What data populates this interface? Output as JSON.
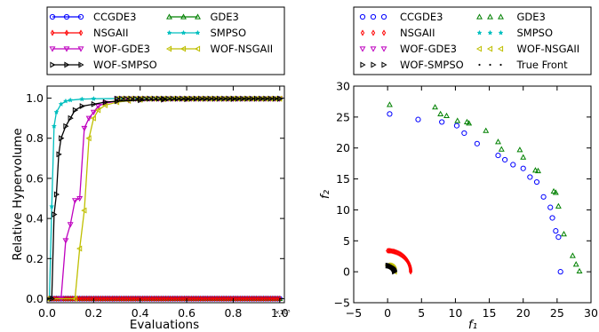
{
  "chart_data": [
    {
      "type": "line",
      "xlabel": "Evaluations",
      "ylabel": "Relative Hypervolume",
      "x_multiplier_label": "×10⁵",
      "xlim": [
        0,
        1.02
      ],
      "ylim": [
        -0.02,
        1.06
      ],
      "xticks": [
        "0.0",
        "0.2",
        "0.4",
        "0.6",
        "0.8",
        "1.0"
      ],
      "yticks": [
        "0.0",
        "0.2",
        "0.4",
        "0.6",
        "0.8",
        "1.0"
      ],
      "grid": false,
      "legend": {
        "placement": "above",
        "columns": 2,
        "entries": [
          "CCGDE3",
          "GDE3",
          "NSGAII",
          "SMPSO",
          "WOF-GDE3",
          "WOF-NSGAII",
          "WOF-SMPSO"
        ]
      },
      "series": [
        {
          "name": "CCGDE3",
          "color": "#0000ff",
          "marker": "circle",
          "x": [
            0.01,
            0.2,
            0.4,
            0.6,
            0.8,
            1.0
          ],
          "y": [
            0.0,
            0.0,
            0.0,
            0.0,
            0.0,
            0.0
          ]
        },
        {
          "name": "GDE3",
          "color": "#008000",
          "marker": "triangle-up",
          "x": [
            0.01,
            0.2,
            0.4,
            0.6,
            0.8,
            1.0
          ],
          "y": [
            0.0,
            0.0,
            0.0,
            0.0,
            0.0,
            0.0
          ]
        },
        {
          "name": "NSGAII",
          "color": "#ff0000",
          "marker": "thin-diamond",
          "x": [
            0.01,
            0.2,
            0.4,
            0.6,
            0.8,
            1.0
          ],
          "y": [
            0.0,
            0.0,
            0.0,
            0.0,
            0.0,
            0.0
          ]
        },
        {
          "name": "SMPSO",
          "color": "#00bfbf",
          "marker": "star",
          "x": [
            0.01,
            0.02,
            0.03,
            0.04,
            0.06,
            0.08,
            0.1,
            0.15,
            0.2,
            0.3,
            0.4,
            0.5,
            0.6,
            0.7,
            0.8,
            0.9,
            1.0
          ],
          "y": [
            0.0,
            0.46,
            0.86,
            0.93,
            0.97,
            0.985,
            0.99,
            0.995,
            0.997,
            0.998,
            0.998,
            0.998,
            0.998,
            0.998,
            0.998,
            0.998,
            0.998
          ]
        },
        {
          "name": "WOF-GDE3",
          "color": "#bf00bf",
          "marker": "triangle-down",
          "x": [
            0.0,
            0.06,
            0.08,
            0.1,
            0.12,
            0.14,
            0.16,
            0.18,
            0.2,
            0.22,
            0.25,
            0.3,
            0.35,
            0.4,
            0.5,
            0.6,
            0.8,
            1.0
          ],
          "y": [
            0.0,
            0.0,
            0.29,
            0.37,
            0.49,
            0.5,
            0.85,
            0.9,
            0.93,
            0.96,
            0.975,
            0.985,
            0.99,
            0.993,
            0.995,
            0.996,
            0.997,
            0.997
          ]
        },
        {
          "name": "WOF-NSGAII",
          "color": "#bfbf00",
          "marker": "triangle-left",
          "x": [
            0.0,
            0.12,
            0.14,
            0.16,
            0.18,
            0.2,
            0.22,
            0.25,
            0.3,
            0.35,
            0.4,
            0.5,
            0.6,
            0.8,
            1.0
          ],
          "y": [
            0.0,
            0.0,
            0.25,
            0.44,
            0.8,
            0.9,
            0.94,
            0.965,
            0.98,
            0.987,
            0.992,
            0.995,
            0.996,
            0.997,
            0.997
          ]
        },
        {
          "name": "WOF-SMPSO",
          "color": "#000000",
          "marker": "triangle-right",
          "x": [
            0.0,
            0.02,
            0.03,
            0.04,
            0.05,
            0.06,
            0.08,
            0.1,
            0.12,
            0.15,
            0.2,
            0.25,
            0.3,
            0.4,
            0.5,
            0.6,
            0.8,
            1.0
          ],
          "y": [
            0.0,
            0.0,
            0.42,
            0.52,
            0.72,
            0.8,
            0.86,
            0.9,
            0.94,
            0.96,
            0.97,
            0.98,
            0.985,
            0.99,
            0.993,
            0.995,
            0.996,
            0.997
          ]
        }
      ]
    },
    {
      "type": "scatter",
      "xlabel": "f₁",
      "ylabel": "f₂",
      "xlim": [
        -5,
        30
      ],
      "ylim": [
        -5,
        30
      ],
      "xticks": [
        "−5",
        "0",
        "5",
        "10",
        "15",
        "20",
        "25",
        "30"
      ],
      "yticks": [
        "−5",
        "0",
        "5",
        "10",
        "15",
        "20",
        "25",
        "30"
      ],
      "grid": false,
      "legend": {
        "placement": "above",
        "columns": 2,
        "entries": [
          "CCGDE3",
          "GDE3",
          "NSGAII",
          "SMPSO",
          "WOF-GDE3",
          "WOF-NSGAII",
          "WOF-SMPSO",
          "True Front"
        ]
      },
      "series": [
        {
          "name": "CCGDE3",
          "color": "#0000ff",
          "marker": "circle",
          "x": [
            0.3,
            4.5,
            8.0,
            10.2,
            11.3,
            13.2,
            16.3,
            17.3,
            18.5,
            20.0,
            21.0,
            22.0,
            23.0,
            24.0,
            24.3,
            24.8,
            25.2,
            25.5
          ],
          "y": [
            25.5,
            24.6,
            24.2,
            23.6,
            22.4,
            20.7,
            18.8,
            18.1,
            17.3,
            16.7,
            15.3,
            14.5,
            12.1,
            10.4,
            8.7,
            6.6,
            5.6,
            0.0
          ]
        },
        {
          "name": "GDE3",
          "color": "#008000",
          "marker": "triangle-up",
          "x": [
            0.3,
            7.0,
            7.8,
            8.7,
            10.3,
            11.7,
            12.0,
            14.5,
            16.3,
            16.8,
            19.5,
            20.0,
            21.8,
            22.2,
            24.5,
            24.8,
            25.2,
            26.0,
            27.3,
            27.8,
            28.3
          ],
          "y": [
            27.0,
            26.6,
            25.5,
            25.2,
            24.4,
            24.2,
            24.0,
            22.8,
            21.0,
            19.8,
            19.7,
            18.5,
            16.4,
            16.3,
            13.0,
            12.8,
            10.6,
            6.1,
            2.6,
            1.2,
            0.1
          ]
        },
        {
          "name": "NSGAII",
          "color": "#ff0000",
          "marker": "thin-diamond",
          "radius": 3.4
        },
        {
          "name": "SMPSO",
          "color": "#00bfbf",
          "marker": "star"
        },
        {
          "name": "WOF-GDE3",
          "color": "#bf00bf",
          "marker": "triangle-down"
        },
        {
          "name": "WOF-NSGAII",
          "color": "#bfbf00",
          "marker": "triangle-left",
          "radius": 1.05
        },
        {
          "name": "WOF-SMPSO",
          "color": "#000000",
          "marker": "triangle-right",
          "radius": 1.0
        },
        {
          "name": "True Front",
          "color": "#000000",
          "marker": "point",
          "radius": 1.0
        }
      ]
    }
  ]
}
